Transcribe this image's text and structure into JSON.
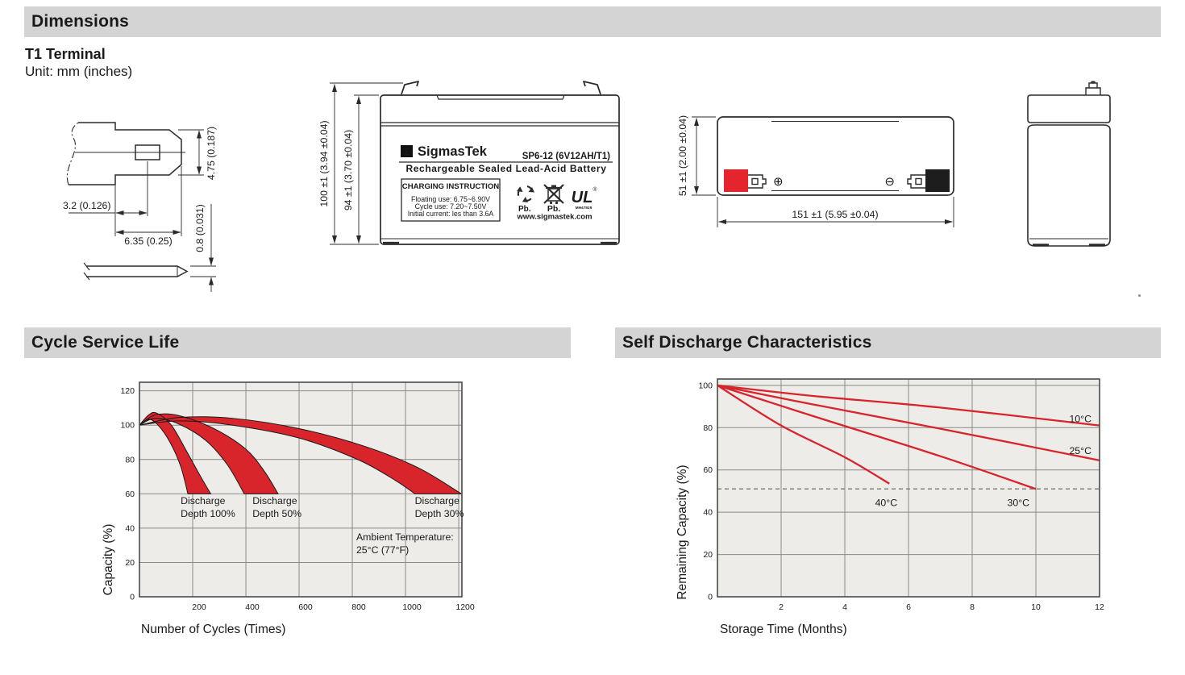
{
  "sections": {
    "dimensions": "Dimensions",
    "cycle": "Cycle Service Life",
    "self_discharge": "Self Discharge Characteristics"
  },
  "t1": {
    "heading": "T1 Terminal",
    "unit": "Unit: mm (inches)"
  },
  "terminal_drawing": {
    "dim_width": "4.75 (0.187)",
    "dim_offset": "3.2 (0.126)",
    "dim_length": "6.35 (0.25)",
    "dim_thickness": "0.8 (0.031)"
  },
  "front_view": {
    "dim_height_outer": "100 ±1 (3.94 ±0.04)",
    "dim_height_inner": "94 ±1 (3.70 ±0.04)",
    "sigma": "Σ",
    "brand": "SigmasTek",
    "model": "SP6-12 (6V12AH/T1)",
    "subtitle": "Rechargeable Sealed Lead-Acid Battery",
    "charging_title": "CHARGING INSTRUCTION",
    "charging_lines": [
      "Floating use: 6.75~6.90V",
      "Cycle use: 7.20~7.50V",
      "Initial current: les than 3.6A"
    ],
    "pb_recycle_label": "Pb.",
    "pb_bin_label": "Pb.",
    "ul_letters": "UL",
    "ul_registered": "®",
    "ul_code": "MH47929",
    "website": "www.sigmastek.com"
  },
  "top_view": {
    "dim_height": "51 ±1 (2.00 ±0.04)",
    "dim_length": "151 ±1 (5.95 ±0.04)",
    "plus_symbol": "⊕",
    "minus_symbol": "⊖"
  },
  "colors": {
    "accent_red": "#d8242b",
    "terminal_red": "#e4262c",
    "terminal_black": "#1d1d1d",
    "header_bar_bg": "#d4d4d4",
    "chart_bg": "#edece9",
    "grid_line": "#8a8a8a",
    "chart_border": "#4a4a4a",
    "drawing_line": "#2b2b2b",
    "dashed_line": "#7f7f7f"
  },
  "chart_data": [
    {
      "type": "area",
      "title": "Cycle Service Life",
      "xlabel": "Number of Cycles (Times)",
      "ylabel": "Capacity (%)",
      "xlim": [
        0,
        1212
      ],
      "ylim": [
        0,
        125
      ],
      "xticks": [
        200,
        400,
        600,
        800,
        1000,
        1200
      ],
      "yticks": [
        0,
        20,
        40,
        60,
        80,
        100,
        120
      ],
      "grid": true,
      "legend_position": "none",
      "bands": [
        {
          "name": "Discharge Depth 100%",
          "upper": [
            [
              0,
              100
            ],
            [
              35,
              106
            ],
            [
              65,
              107
            ],
            [
              120,
              100
            ],
            [
              180,
              84
            ],
            [
              230,
              70
            ],
            [
              268,
              60
            ]
          ],
          "lower": [
            [
              0,
              100
            ],
            [
              35,
              103.5
            ],
            [
              70,
              100
            ],
            [
              115,
              90
            ],
            [
              155,
              76
            ],
            [
              182,
              60
            ]
          ]
        },
        {
          "name": "Discharge Depth 50%",
          "upper": [
            [
              0,
              100
            ],
            [
              60,
              106
            ],
            [
              150,
              105.5
            ],
            [
              280,
              98
            ],
            [
              400,
              86
            ],
            [
              470,
              73
            ],
            [
              521,
              60
            ]
          ],
          "lower": [
            [
              0,
              100
            ],
            [
              60,
              104
            ],
            [
              150,
              100.5
            ],
            [
              250,
              91
            ],
            [
              330,
              77
            ],
            [
              394,
              60
            ]
          ]
        },
        {
          "name": "Discharge Depth 30%",
          "upper": [
            [
              0,
              100
            ],
            [
              150,
              104.5
            ],
            [
              350,
              104
            ],
            [
              600,
              98
            ],
            [
              850,
              87.5
            ],
            [
              1050,
              75
            ],
            [
              1210,
              60
            ]
          ],
          "lower": [
            [
              0,
              100
            ],
            [
              150,
              102.5
            ],
            [
              350,
              100
            ],
            [
              600,
              92.5
            ],
            [
              820,
              80
            ],
            [
              960,
              68
            ],
            [
              1035,
              60
            ]
          ]
        }
      ],
      "annotations": [
        {
          "text": "Discharge\nDepth 100%",
          "x": 155,
          "y": 54,
          "anchor": "start"
        },
        {
          "text": "Discharge\nDepth 50%",
          "x": 425,
          "y": 54,
          "anchor": "start"
        },
        {
          "text": "Discharge\nDepth 30%",
          "x": 1035,
          "y": 54,
          "anchor": "start"
        },
        {
          "text": "Ambient Temperature:\n25°C (77°F)",
          "x": 815,
          "y": 33,
          "anchor": "start"
        }
      ]
    },
    {
      "type": "line",
      "title": "Self Discharge Characteristics",
      "xlabel": "Storage Time (Months)",
      "ylabel": "Remaining Capacity (%)",
      "xlim": [
        0,
        12
      ],
      "ylim": [
        0,
        103
      ],
      "xticks": [
        2,
        4,
        6,
        8,
        10,
        12
      ],
      "yticks": [
        0,
        20,
        40,
        60,
        80,
        100
      ],
      "grid": true,
      "legend_position": "inline-labels",
      "series": [
        {
          "name": "10°C",
          "points": [
            [
              0,
              100
            ],
            [
              3,
              95
            ],
            [
              7,
              89.5
            ],
            [
              12,
              81
            ]
          ],
          "label_x": 11.05,
          "label_y": 82.5,
          "label_anchor": "start"
        },
        {
          "name": "25°C",
          "points": [
            [
              0,
              100
            ],
            [
              3,
              91
            ],
            [
              7,
              79.5
            ],
            [
              12,
              64.5
            ]
          ],
          "label_x": 11.05,
          "label_y": 67.5,
          "label_anchor": "start"
        },
        {
          "name": "30°C",
          "points": [
            [
              0,
              100
            ],
            [
              3,
              85.5
            ],
            [
              7,
              66.5
            ],
            [
              10,
              51
            ]
          ],
          "label_x": 9.45,
          "label_y": 43,
          "label_anchor": "middle"
        },
        {
          "name": "40°C",
          "points": [
            [
              0,
              100
            ],
            [
              2,
              81
            ],
            [
              4,
              66
            ],
            [
              5.4,
              53.5
            ]
          ],
          "label_x": 5.3,
          "label_y": 43,
          "label_anchor": "middle"
        }
      ],
      "reference_line_y": 51
    }
  ]
}
